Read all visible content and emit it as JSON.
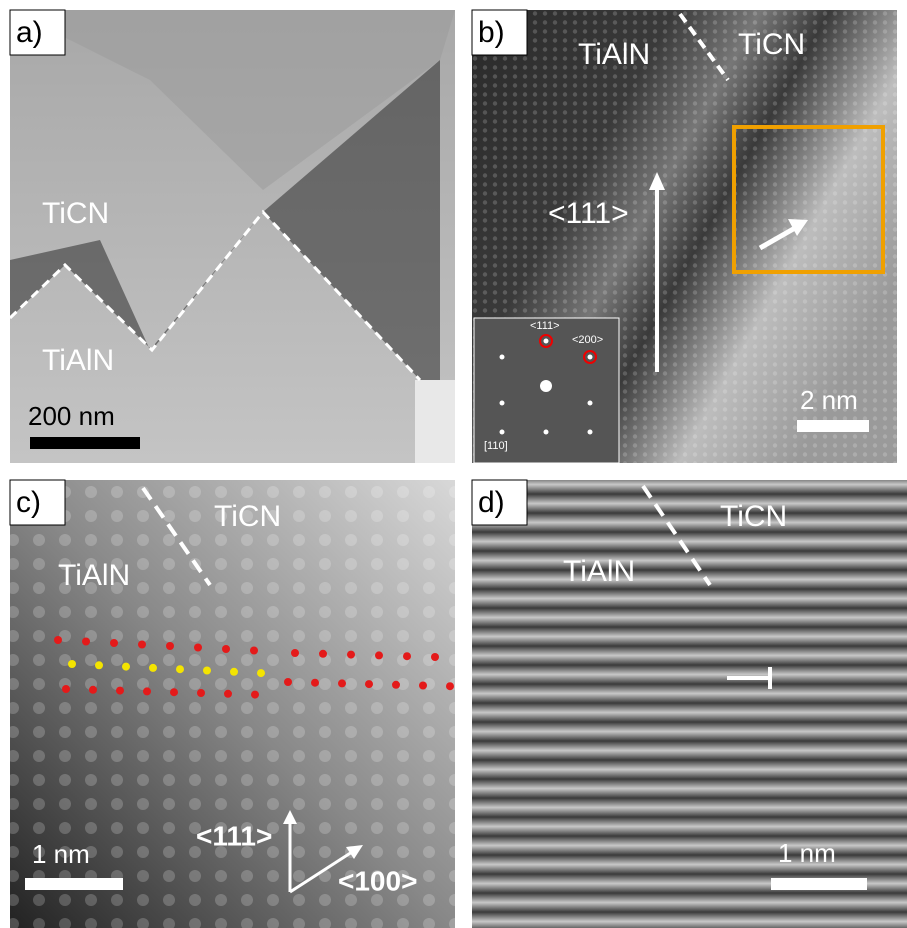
{
  "panels": [
    {
      "label": "a)",
      "upper_phase": "TiCN",
      "lower_phase": "TiAlN",
      "scale_bar": "200 nm"
    },
    {
      "label": "b)",
      "left_phase": "TiAlN",
      "right_phase": "TiCN",
      "direction": "<111>",
      "scale_bar": "2 nm",
      "inset": {
        "spot_1": "<111>",
        "spot_2": "<200>",
        "zone_axis": "[110]"
      }
    },
    {
      "label": "c)",
      "right_phase": "TiCN",
      "left_phase": "TiAlN",
      "direction_1": "<111>",
      "direction_2": "<100>",
      "scale_bar": "1 nm"
    },
    {
      "label": "d)",
      "right_phase": "TiCN",
      "left_phase": "TiAlN",
      "scale_bar": "1 nm"
    }
  ]
}
